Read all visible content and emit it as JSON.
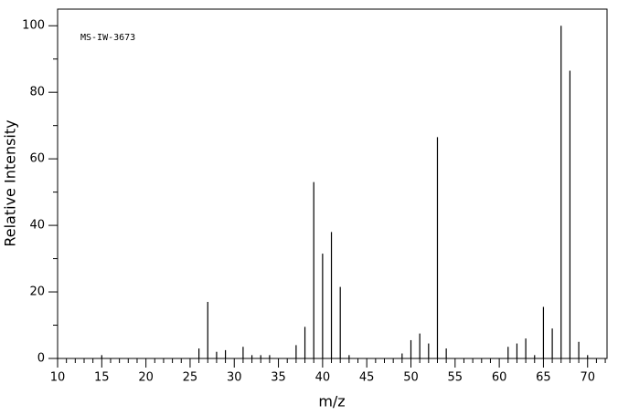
{
  "chart_data": {
    "type": "stick",
    "annotation": "MS-IW-3673",
    "x_label": "m/z",
    "y_label": "Relative Intensity",
    "color": "#000000",
    "x": [
      15,
      26,
      27,
      28,
      29,
      31,
      32,
      33,
      34,
      37,
      38,
      39,
      40,
      41,
      42,
      43,
      49,
      50,
      51,
      52,
      53,
      54,
      61,
      62,
      63,
      64,
      65,
      66,
      67,
      68,
      69,
      70
    ],
    "values": [
      1,
      3,
      17,
      2,
      2.5,
      3.5,
      1,
      1,
      1,
      4,
      9.5,
      53,
      31.5,
      38,
      21.5,
      1,
      1.5,
      5.5,
      7.5,
      4.5,
      66.5,
      3,
      3.5,
      4.5,
      6,
      1,
      15.5,
      9,
      100,
      86.5,
      5,
      1
    ],
    "xlim": [
      10,
      72.2
    ],
    "ylim": [
      0,
      105
    ],
    "xticks": [
      10,
      15,
      20,
      25,
      30,
      35,
      40,
      45,
      50,
      55,
      60,
      65,
      70
    ],
    "yticks": [
      0,
      20,
      40,
      60,
      80,
      100
    ],
    "x_minor_ticks": [
      11,
      12,
      13,
      14,
      16,
      17,
      18,
      19,
      21,
      22,
      23,
      24,
      26,
      27,
      28,
      29,
      31,
      32,
      33,
      34,
      36,
      37,
      38,
      39,
      41,
      42,
      43,
      44,
      46,
      47,
      48,
      49,
      51,
      52,
      53,
      54,
      56,
      57,
      58,
      59,
      61,
      62,
      63,
      64,
      66,
      67,
      68,
      69,
      71,
      72
    ],
    "y_minor_ticks": [
      10,
      30,
      50,
      70,
      90
    ]
  }
}
